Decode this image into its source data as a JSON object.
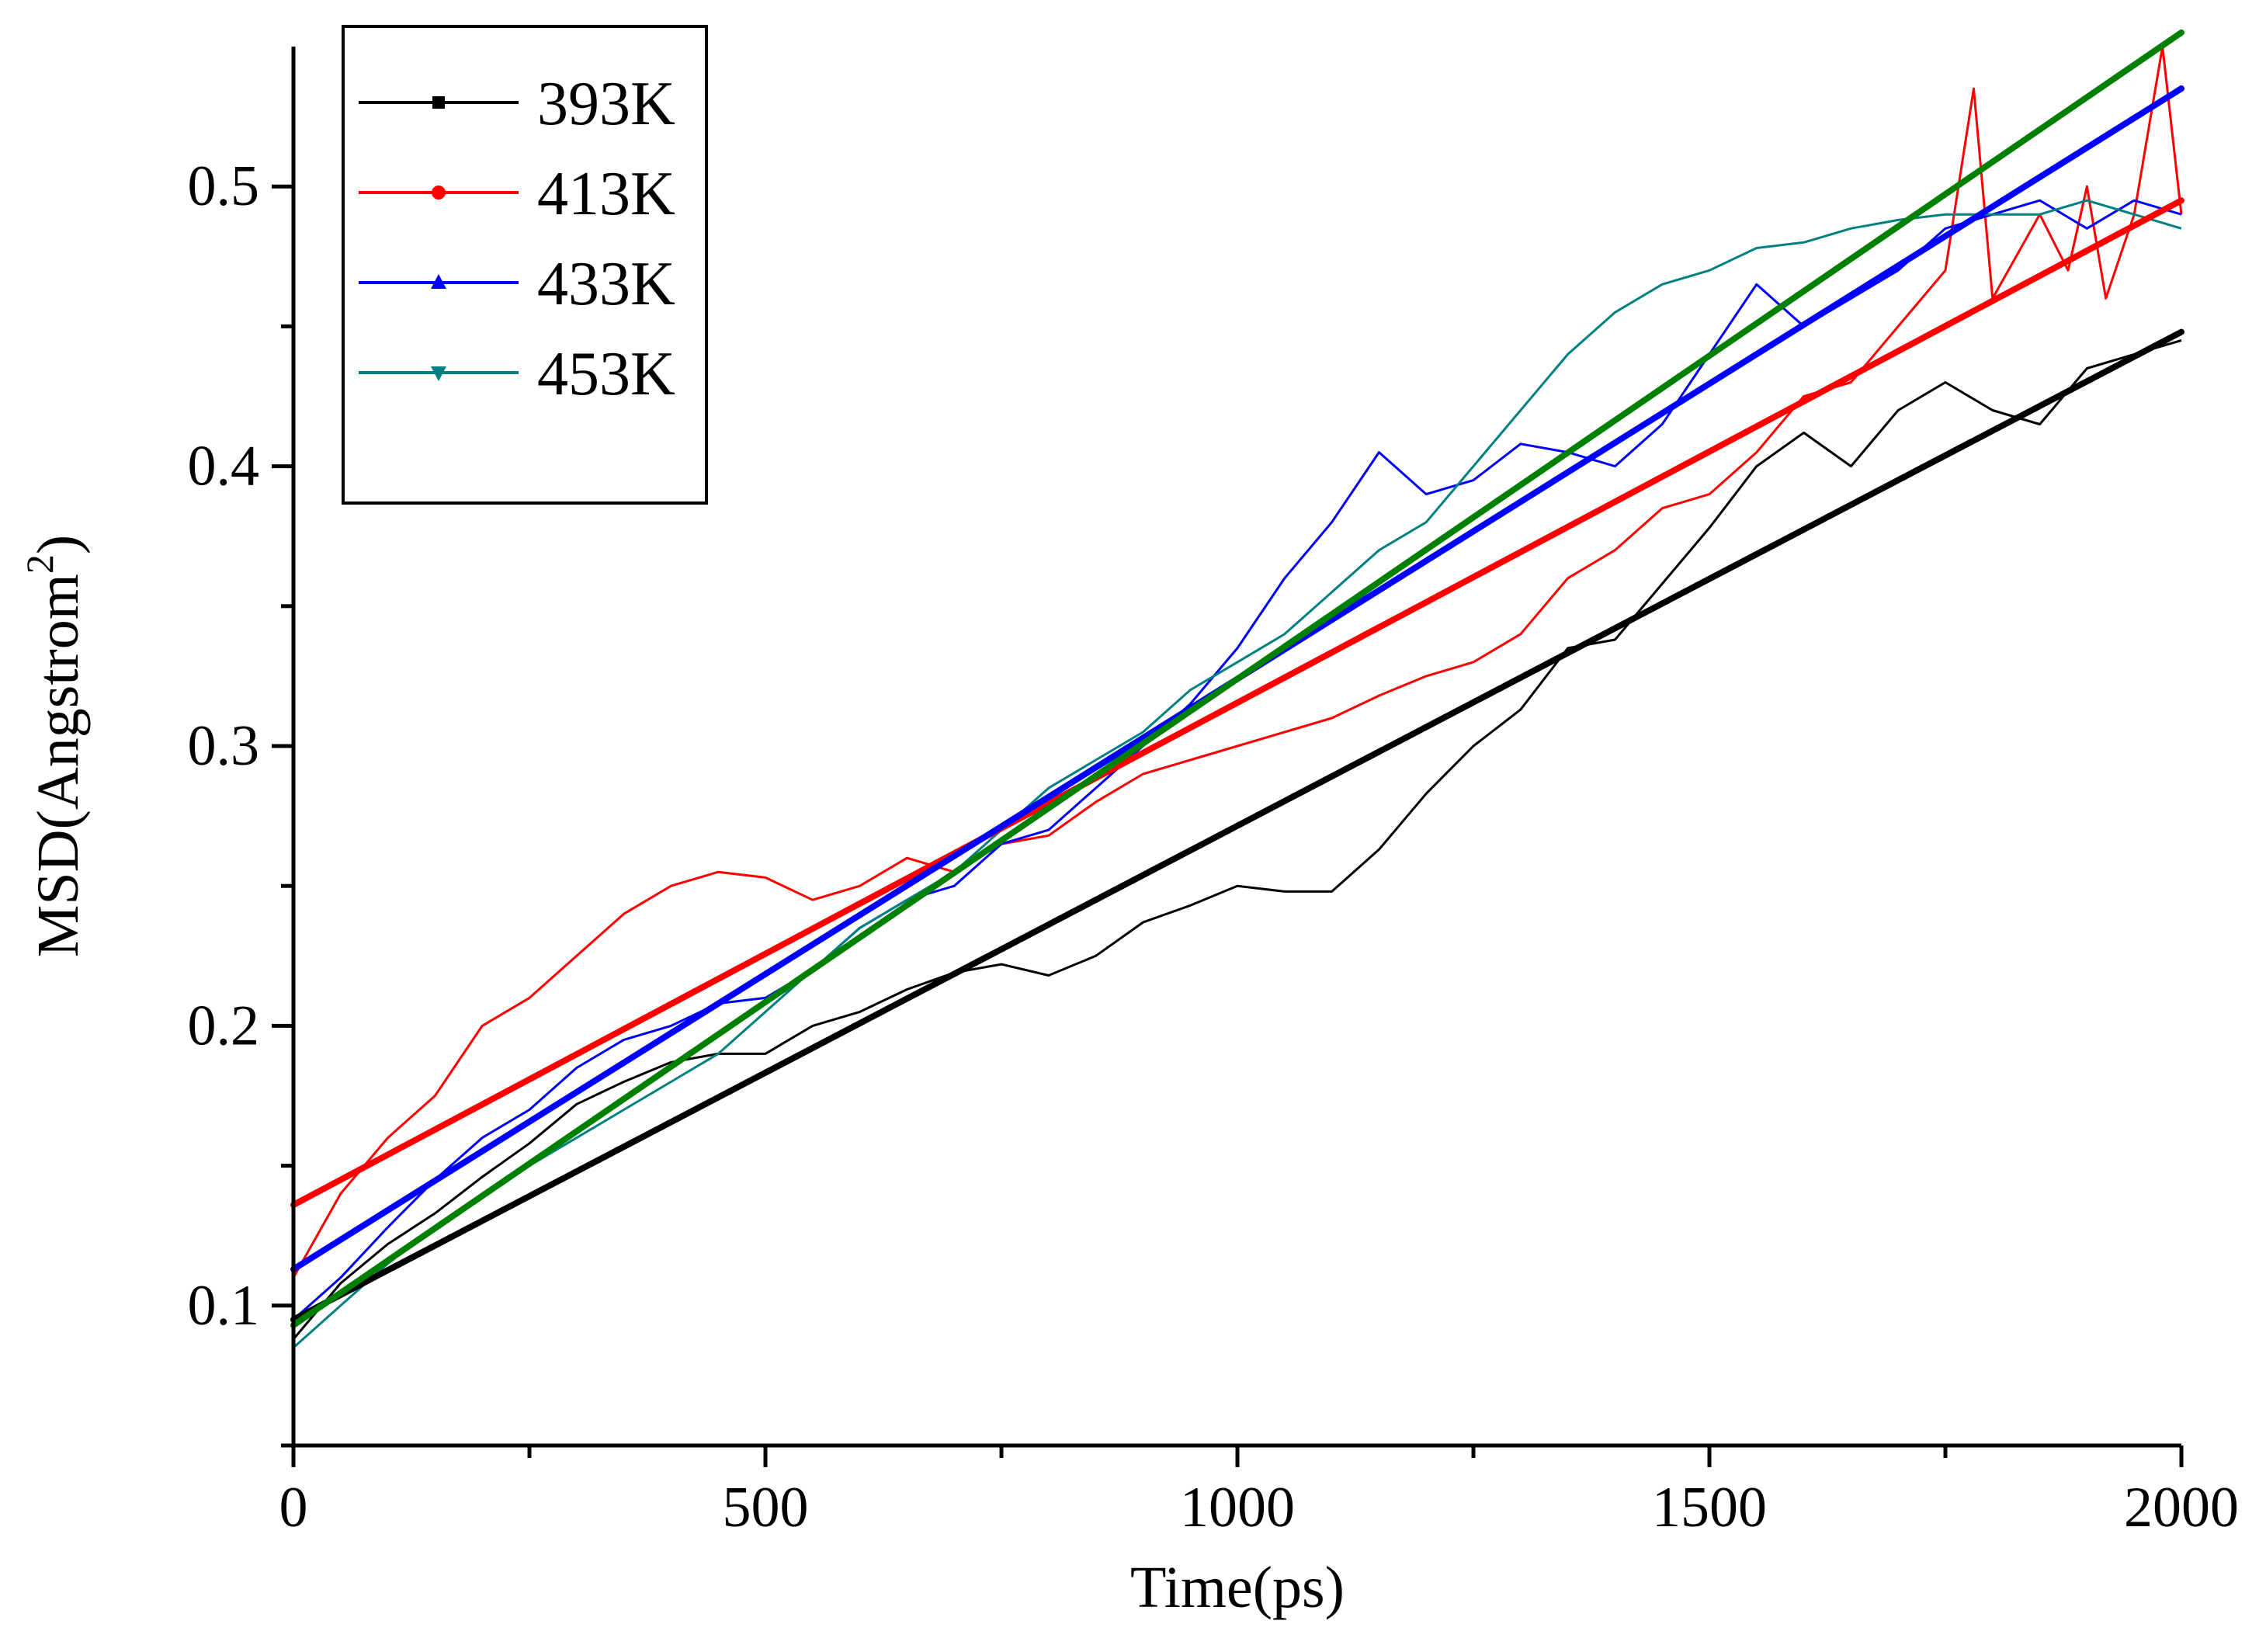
{
  "chart_data": {
    "type": "line",
    "title": "",
    "xlabel": "Time(ps)",
    "ylabel": "MSD(Angstrom",
    "ylabel_superscript": "2",
    "ylabel_suffix": ")",
    "xlim": [
      0,
      2000
    ],
    "ylim": [
      0.05,
      0.55
    ],
    "x_ticks": [
      0,
      500,
      1000,
      1500,
      2000
    ],
    "x_tick_labels": [
      "0",
      "500",
      "1000",
      "1500",
      "2000"
    ],
    "y_ticks": [
      0.1,
      0.2,
      0.3,
      0.4,
      0.5
    ],
    "y_tick_labels": [
      "0.1",
      "0.2",
      "0.3",
      "0.4",
      "0.5"
    ],
    "grid": false,
    "legend_position": "top-left",
    "series": [
      {
        "name": "393K",
        "color": "#000000",
        "marker": "square",
        "x": [
          0,
          50,
          100,
          150,
          200,
          250,
          300,
          350,
          400,
          450,
          500,
          550,
          600,
          650,
          700,
          750,
          800,
          850,
          900,
          950,
          1000,
          1050,
          1100,
          1150,
          1200,
          1250,
          1300,
          1350,
          1400,
          1450,
          1500,
          1550,
          1600,
          1650,
          1700,
          1750,
          1800,
          1850,
          1900,
          1950,
          2000
        ],
        "values": [
          0.088,
          0.108,
          0.122,
          0.133,
          0.146,
          0.158,
          0.172,
          0.18,
          0.187,
          0.19,
          0.19,
          0.2,
          0.205,
          0.213,
          0.219,
          0.222,
          0.218,
          0.225,
          0.237,
          0.243,
          0.25,
          0.248,
          0.248,
          0.263,
          0.283,
          0.3,
          0.313,
          0.335,
          0.338,
          0.358,
          0.378,
          0.4,
          0.412,
          0.4,
          0.42,
          0.43,
          0.42,
          0.415,
          0.435,
          0.44,
          0.445
        ],
        "fit": [
          0.095,
          0.448
        ]
      },
      {
        "name": "413K",
        "color": "#ff0000",
        "marker": "circle",
        "x": [
          0,
          50,
          100,
          150,
          200,
          250,
          300,
          350,
          400,
          450,
          500,
          550,
          600,
          650,
          700,
          750,
          800,
          850,
          900,
          950,
          1000,
          1050,
          1100,
          1150,
          1200,
          1250,
          1300,
          1350,
          1400,
          1450,
          1500,
          1550,
          1600,
          1650,
          1700,
          1750,
          1780,
          1800,
          1850,
          1880,
          1900,
          1920,
          1950,
          1980,
          2000
        ],
        "values": [
          0.11,
          0.14,
          0.16,
          0.175,
          0.2,
          0.21,
          0.225,
          0.24,
          0.25,
          0.255,
          0.253,
          0.245,
          0.25,
          0.26,
          0.255,
          0.265,
          0.268,
          0.28,
          0.29,
          0.295,
          0.3,
          0.305,
          0.31,
          0.318,
          0.325,
          0.33,
          0.34,
          0.36,
          0.37,
          0.385,
          0.39,
          0.405,
          0.425,
          0.43,
          0.45,
          0.47,
          0.535,
          0.46,
          0.49,
          0.47,
          0.5,
          0.46,
          0.49,
          0.55,
          0.49
        ],
        "fit": [
          0.136,
          0.495
        ]
      },
      {
        "name": "433K",
        "color": "#0000ff",
        "marker": "triangle-up",
        "x": [
          0,
          50,
          100,
          150,
          200,
          250,
          300,
          350,
          400,
          450,
          500,
          550,
          600,
          650,
          700,
          750,
          800,
          850,
          900,
          950,
          1000,
          1050,
          1100,
          1150,
          1200,
          1250,
          1300,
          1350,
          1400,
          1450,
          1500,
          1550,
          1600,
          1650,
          1700,
          1750,
          1800,
          1850,
          1900,
          1950,
          2000
        ],
        "values": [
          0.095,
          0.11,
          0.128,
          0.145,
          0.16,
          0.17,
          0.185,
          0.195,
          0.2,
          0.208,
          0.21,
          0.22,
          0.235,
          0.245,
          0.25,
          0.265,
          0.27,
          0.285,
          0.3,
          0.315,
          0.335,
          0.36,
          0.38,
          0.405,
          0.39,
          0.395,
          0.408,
          0.405,
          0.4,
          0.415,
          0.44,
          0.465,
          0.45,
          0.46,
          0.47,
          0.485,
          0.49,
          0.495,
          0.485,
          0.495,
          0.49
        ],
        "fit": [
          0.113,
          0.535
        ]
      },
      {
        "name": "453K",
        "color": "#008080",
        "marker": "triangle-down",
        "x": [
          0,
          50,
          100,
          150,
          200,
          250,
          300,
          350,
          400,
          450,
          500,
          550,
          600,
          650,
          700,
          750,
          800,
          850,
          900,
          950,
          1000,
          1050,
          1100,
          1150,
          1200,
          1250,
          1300,
          1350,
          1400,
          1450,
          1500,
          1550,
          1600,
          1650,
          1700,
          1750,
          1800,
          1850,
          1900,
          1950,
          2000
        ],
        "values": [
          0.085,
          0.1,
          0.115,
          0.128,
          0.14,
          0.15,
          0.16,
          0.17,
          0.18,
          0.19,
          0.205,
          0.22,
          0.235,
          0.245,
          0.255,
          0.27,
          0.285,
          0.295,
          0.305,
          0.32,
          0.33,
          0.34,
          0.355,
          0.37,
          0.38,
          0.4,
          0.42,
          0.44,
          0.455,
          0.465,
          0.47,
          0.478,
          0.48,
          0.485,
          0.488,
          0.49,
          0.49,
          0.49,
          0.495,
          0.49,
          0.485
        ],
        "fit": [
          0.093,
          0.555
        ]
      }
    ],
    "fit_lines": [
      {
        "series": "393K",
        "color": "#000000"
      },
      {
        "series": "413K",
        "color": "#ff0000"
      },
      {
        "series": "433K",
        "color": "#0000ff"
      },
      {
        "series": "453K",
        "color": "#008000"
      }
    ]
  }
}
